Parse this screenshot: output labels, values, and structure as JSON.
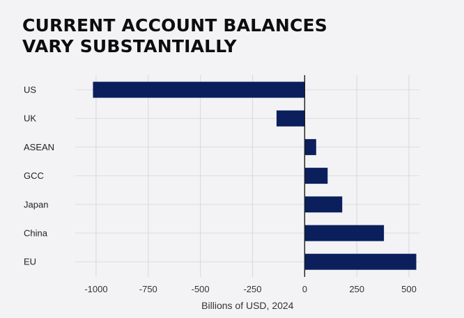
{
  "chart_data": {
    "type": "bar",
    "orientation": "horizontal",
    "title_lines": [
      "CURRENT ACCOUNT BALANCES",
      "VARY SUBSTANTIALLY"
    ],
    "categories": [
      "US",
      "UK",
      "ASEAN",
      "GCC",
      "Japan",
      "China",
      "EU"
    ],
    "values": [
      -1015,
      -135,
      55,
      110,
      180,
      380,
      535
    ],
    "xlabel": "Billions of USD, 2024",
    "ylabel": "",
    "xlim": [
      -1100,
      550
    ],
    "xticks": [
      -1000,
      -750,
      -500,
      -250,
      0,
      250,
      500
    ],
    "xtick_labels": [
      "-1000",
      "-750",
      "-500",
      "-250",
      "0",
      "250",
      "500"
    ],
    "grid": true,
    "legend": "none",
    "colors": {
      "bar": "#0a1f5c",
      "grid": "#dcdcdf",
      "zero_line": "#1a1a1a",
      "background": "#f3f3f5"
    }
  }
}
